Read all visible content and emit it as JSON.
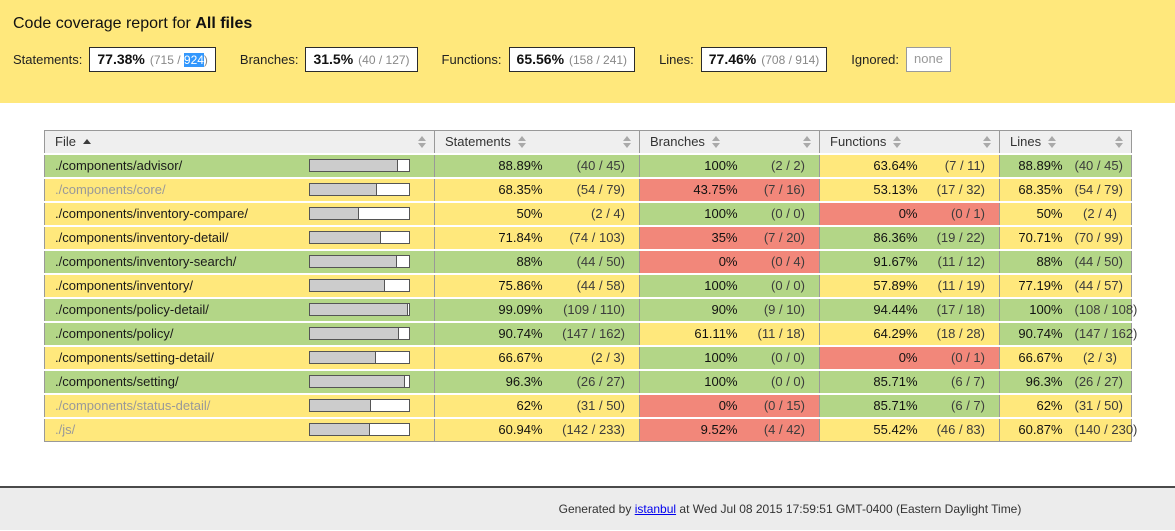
{
  "colors": {
    "banner": "#ffe87c",
    "high": "#b3d687",
    "medium": "#ffe87c",
    "low": "#f2877a",
    "selection": "#3297fd"
  },
  "header": {
    "title_prefix": "Code coverage report for ",
    "title_entity": "All files",
    "metrics": [
      {
        "id": "statements",
        "label": "Statements:",
        "pct": "77.38%",
        "covered": "715",
        "total": "924",
        "total_selected": true
      },
      {
        "id": "branches",
        "label": "Branches:",
        "pct": "31.5%",
        "covered": "40",
        "total": "127"
      },
      {
        "id": "functions",
        "label": "Functions:",
        "pct": "65.56%",
        "covered": "158",
        "total": "241"
      },
      {
        "id": "lines",
        "label": "Lines:",
        "pct": "77.46%",
        "covered": "708",
        "total": "914"
      }
    ],
    "ignored": {
      "id": "ignored",
      "label": "Ignored:",
      "value": "none"
    }
  },
  "table": {
    "headers": [
      {
        "id": "file",
        "label": "File",
        "sort": "asc"
      },
      {
        "id": "pic",
        "label": "",
        "sort": "both"
      },
      {
        "id": "statements",
        "label": "Statements",
        "sort": "both"
      },
      {
        "id": "statements-raw",
        "label": "",
        "sort": "both"
      },
      {
        "id": "branches",
        "label": "Branches",
        "sort": "both"
      },
      {
        "id": "branches-raw",
        "label": "",
        "sort": "both"
      },
      {
        "id": "functions",
        "label": "Functions",
        "sort": "both"
      },
      {
        "id": "functions-raw",
        "label": "",
        "sort": "both"
      },
      {
        "id": "lines",
        "label": "Lines",
        "sort": "both"
      }
    ],
    "rows": [
      {
        "file": "./components/advisor/",
        "visited": false,
        "file_level": "high",
        "statements": {
          "pct": "88.89%",
          "abs": "(40 / 45)",
          "level": "high"
        },
        "branches": {
          "pct": "100%",
          "abs": "(2 / 2)",
          "level": "high"
        },
        "functions": {
          "pct": "63.64%",
          "abs": "(7 / 11)",
          "level": "medium"
        },
        "lines": {
          "pct": "88.89%",
          "abs": "(40 / 45)",
          "level": "high"
        }
      },
      {
        "file": "./components/core/",
        "visited": true,
        "file_level": "medium",
        "statements": {
          "pct": "68.35%",
          "abs": "(54 / 79)",
          "level": "medium"
        },
        "branches": {
          "pct": "43.75%",
          "abs": "(7 / 16)",
          "level": "low"
        },
        "functions": {
          "pct": "53.13%",
          "abs": "(17 / 32)",
          "level": "medium"
        },
        "lines": {
          "pct": "68.35%",
          "abs": "(54 / 79)",
          "level": "medium"
        }
      },
      {
        "file": "./components/inventory-compare/",
        "visited": false,
        "file_level": "medium",
        "statements": {
          "pct": "50%",
          "abs": "(2 / 4)",
          "level": "medium"
        },
        "branches": {
          "pct": "100%",
          "abs": "(0 / 0)",
          "level": "high"
        },
        "functions": {
          "pct": "0%",
          "abs": "(0 / 1)",
          "level": "low"
        },
        "lines": {
          "pct": "50%",
          "abs": "(2 / 4)",
          "level": "medium"
        }
      },
      {
        "file": "./components/inventory-detail/",
        "visited": false,
        "file_level": "medium",
        "statements": {
          "pct": "71.84%",
          "abs": "(74 / 103)",
          "level": "medium"
        },
        "branches": {
          "pct": "35%",
          "abs": "(7 / 20)",
          "level": "low"
        },
        "functions": {
          "pct": "86.36%",
          "abs": "(19 / 22)",
          "level": "high"
        },
        "lines": {
          "pct": "70.71%",
          "abs": "(70 / 99)",
          "level": "medium"
        }
      },
      {
        "file": "./components/inventory-search/",
        "visited": false,
        "file_level": "high",
        "statements": {
          "pct": "88%",
          "abs": "(44 / 50)",
          "level": "high"
        },
        "branches": {
          "pct": "0%",
          "abs": "(0 / 4)",
          "level": "low"
        },
        "functions": {
          "pct": "91.67%",
          "abs": "(11 / 12)",
          "level": "high"
        },
        "lines": {
          "pct": "88%",
          "abs": "(44 / 50)",
          "level": "high"
        }
      },
      {
        "file": "./components/inventory/",
        "visited": false,
        "file_level": "medium",
        "statements": {
          "pct": "75.86%",
          "abs": "(44 / 58)",
          "level": "medium"
        },
        "branches": {
          "pct": "100%",
          "abs": "(0 / 0)",
          "level": "high"
        },
        "functions": {
          "pct": "57.89%",
          "abs": "(11 / 19)",
          "level": "medium"
        },
        "lines": {
          "pct": "77.19%",
          "abs": "(44 / 57)",
          "level": "medium"
        }
      },
      {
        "file": "./components/policy-detail/",
        "visited": false,
        "file_level": "high",
        "statements": {
          "pct": "99.09%",
          "abs": "(109 / 110)",
          "level": "high"
        },
        "branches": {
          "pct": "90%",
          "abs": "(9 / 10)",
          "level": "high"
        },
        "functions": {
          "pct": "94.44%",
          "abs": "(17 / 18)",
          "level": "high"
        },
        "lines": {
          "pct": "100%",
          "abs": "(108 / 108)",
          "level": "high"
        }
      },
      {
        "file": "./components/policy/",
        "visited": false,
        "file_level": "high",
        "statements": {
          "pct": "90.74%",
          "abs": "(147 / 162)",
          "level": "high"
        },
        "branches": {
          "pct": "61.11%",
          "abs": "(11 / 18)",
          "level": "medium"
        },
        "functions": {
          "pct": "64.29%",
          "abs": "(18 / 28)",
          "level": "medium"
        },
        "lines": {
          "pct": "90.74%",
          "abs": "(147 / 162)",
          "level": "high"
        }
      },
      {
        "file": "./components/setting-detail/",
        "visited": false,
        "file_level": "medium",
        "statements": {
          "pct": "66.67%",
          "abs": "(2 / 3)",
          "level": "medium"
        },
        "branches": {
          "pct": "100%",
          "abs": "(0 / 0)",
          "level": "high"
        },
        "functions": {
          "pct": "0%",
          "abs": "(0 / 1)",
          "level": "low"
        },
        "lines": {
          "pct": "66.67%",
          "abs": "(2 / 3)",
          "level": "medium"
        }
      },
      {
        "file": "./components/setting/",
        "visited": false,
        "file_level": "high",
        "statements": {
          "pct": "96.3%",
          "abs": "(26 / 27)",
          "level": "high"
        },
        "branches": {
          "pct": "100%",
          "abs": "(0 / 0)",
          "level": "high"
        },
        "functions": {
          "pct": "85.71%",
          "abs": "(6 / 7)",
          "level": "high"
        },
        "lines": {
          "pct": "96.3%",
          "abs": "(26 / 27)",
          "level": "high"
        }
      },
      {
        "file": "./components/status-detail/",
        "visited": true,
        "file_level": "medium",
        "statements": {
          "pct": "62%",
          "abs": "(31 / 50)",
          "level": "medium"
        },
        "branches": {
          "pct": "0%",
          "abs": "(0 / 15)",
          "level": "low"
        },
        "functions": {
          "pct": "85.71%",
          "abs": "(6 / 7)",
          "level": "high"
        },
        "lines": {
          "pct": "62%",
          "abs": "(31 / 50)",
          "level": "medium"
        }
      },
      {
        "file": "./js/",
        "visited": true,
        "file_level": "medium",
        "statements": {
          "pct": "60.94%",
          "abs": "(142 / 233)",
          "level": "medium"
        },
        "branches": {
          "pct": "9.52%",
          "abs": "(4 / 42)",
          "level": "low"
        },
        "functions": {
          "pct": "55.42%",
          "abs": "(46 / 83)",
          "level": "medium"
        },
        "lines": {
          "pct": "60.87%",
          "abs": "(140 / 230)",
          "level": "medium"
        }
      }
    ]
  },
  "footer": {
    "prefix": "Generated by ",
    "link_label": "istanbul",
    "suffix": " at Wed Jul 08 2015 17:59:51 GMT-0400 (Eastern Daylight Time)"
  }
}
